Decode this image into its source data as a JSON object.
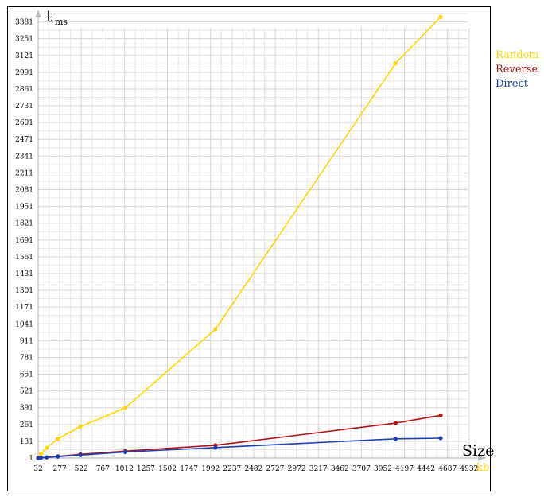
{
  "chart_data": {
    "type": "line",
    "y_axis_label": "t",
    "y_axis_unit": "ms",
    "x_axis_label": "Size",
    "x_axis_unit": "kb",
    "x_ticks": [
      "32",
      "277",
      "522",
      "767",
      "1012",
      "1257",
      "1502",
      "1747",
      "1992",
      "2237",
      "2482",
      "2727",
      "2972",
      "3217",
      "3462",
      "3707",
      "3952",
      "4197",
      "4442",
      "4687",
      "4932"
    ],
    "y_ticks": [
      "1",
      "131",
      "261",
      "391",
      "521",
      "651",
      "781",
      "911",
      "1041",
      "1171",
      "1301",
      "1431",
      "1561",
      "1691",
      "1821",
      "1951",
      "2081",
      "2211",
      "2341",
      "2471",
      "2601",
      "2731",
      "2861",
      "2991",
      "3121",
      "3251",
      "3381"
    ],
    "xlim": [
      32,
      5060
    ],
    "ylim": [
      1,
      3440
    ],
    "grid": true,
    "legend_position": "right",
    "series": [
      {
        "name": "Random",
        "color": "#FFD700",
        "x": [
          32,
          64,
          128,
          256,
          512,
          1024,
          2048,
          4096,
          4608
        ],
        "y": [
          3,
          35,
          80,
          150,
          245,
          390,
          1000,
          3060,
          3420
        ]
      },
      {
        "name": "Reverse",
        "color": "#B01010",
        "x": [
          32,
          64,
          128,
          256,
          512,
          1024,
          2048,
          4096,
          4608
        ],
        "y": [
          1,
          3,
          6,
          14,
          30,
          55,
          100,
          272,
          332
        ]
      },
      {
        "name": "Direct",
        "color": "#1A3FB0",
        "x": [
          32,
          64,
          128,
          256,
          512,
          1024,
          2048,
          4096,
          4608
        ],
        "y": [
          1,
          3,
          6,
          12,
          24,
          48,
          82,
          150,
          155
        ]
      }
    ]
  }
}
